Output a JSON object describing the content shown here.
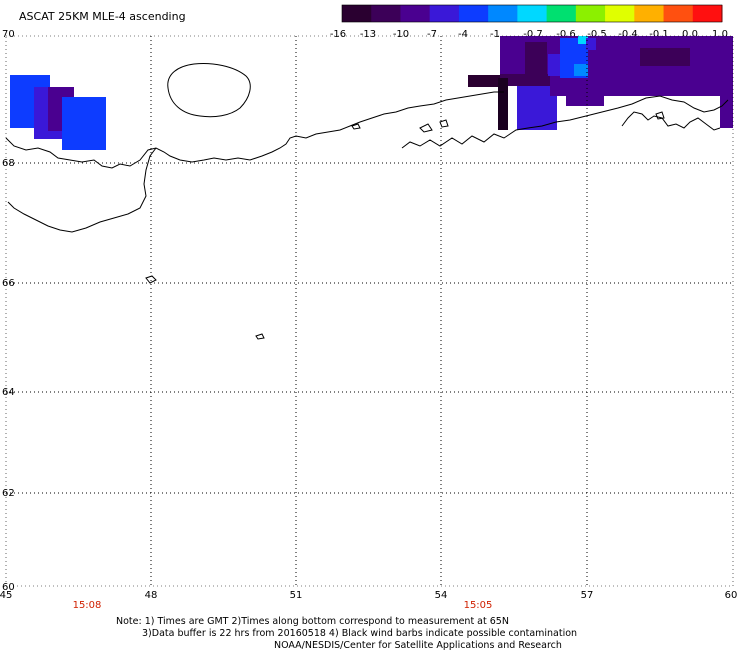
{
  "title": "ASCAT 25KM MLE-4 ascending",
  "colorbar": {
    "colors": [
      "#2a0030",
      "#3c0058",
      "#4a0090",
      "#3a18d8",
      "#0d3cff",
      "#0088ff",
      "#00d8ff",
      "#00e070",
      "#8cf000",
      "#e0ff00",
      "#ffb000",
      "#ff5010",
      "#ff1010"
    ],
    "ticks": [
      "-16",
      "-13",
      "-10",
      "-7",
      "-4",
      "-1",
      "-0.7",
      "-0.6",
      "-0.5",
      "-0.4",
      "-0.1",
      "0.0",
      "1.0"
    ]
  },
  "axes": {
    "x_ticks": [
      "45",
      "48",
      "51",
      "54",
      "57",
      "60"
    ],
    "y_ticks": [
      "70",
      "68",
      "66",
      "64",
      "62",
      "60"
    ]
  },
  "time_labels": [
    "15:08",
    "15:05"
  ],
  "notes": [
    "Note: 1) Times are GMT 2)Times along bottom correspond to measurement at 65N",
    "3)Data buffer is 22 hrs from 20160518 4) Black wind barbs indicate possible contamination",
    "NOAA/NESDIS/Center for Satellite Applications and Research"
  ],
  "colors": {
    "grid": "#000000",
    "coast": "#000000",
    "time": "#d02000"
  }
}
